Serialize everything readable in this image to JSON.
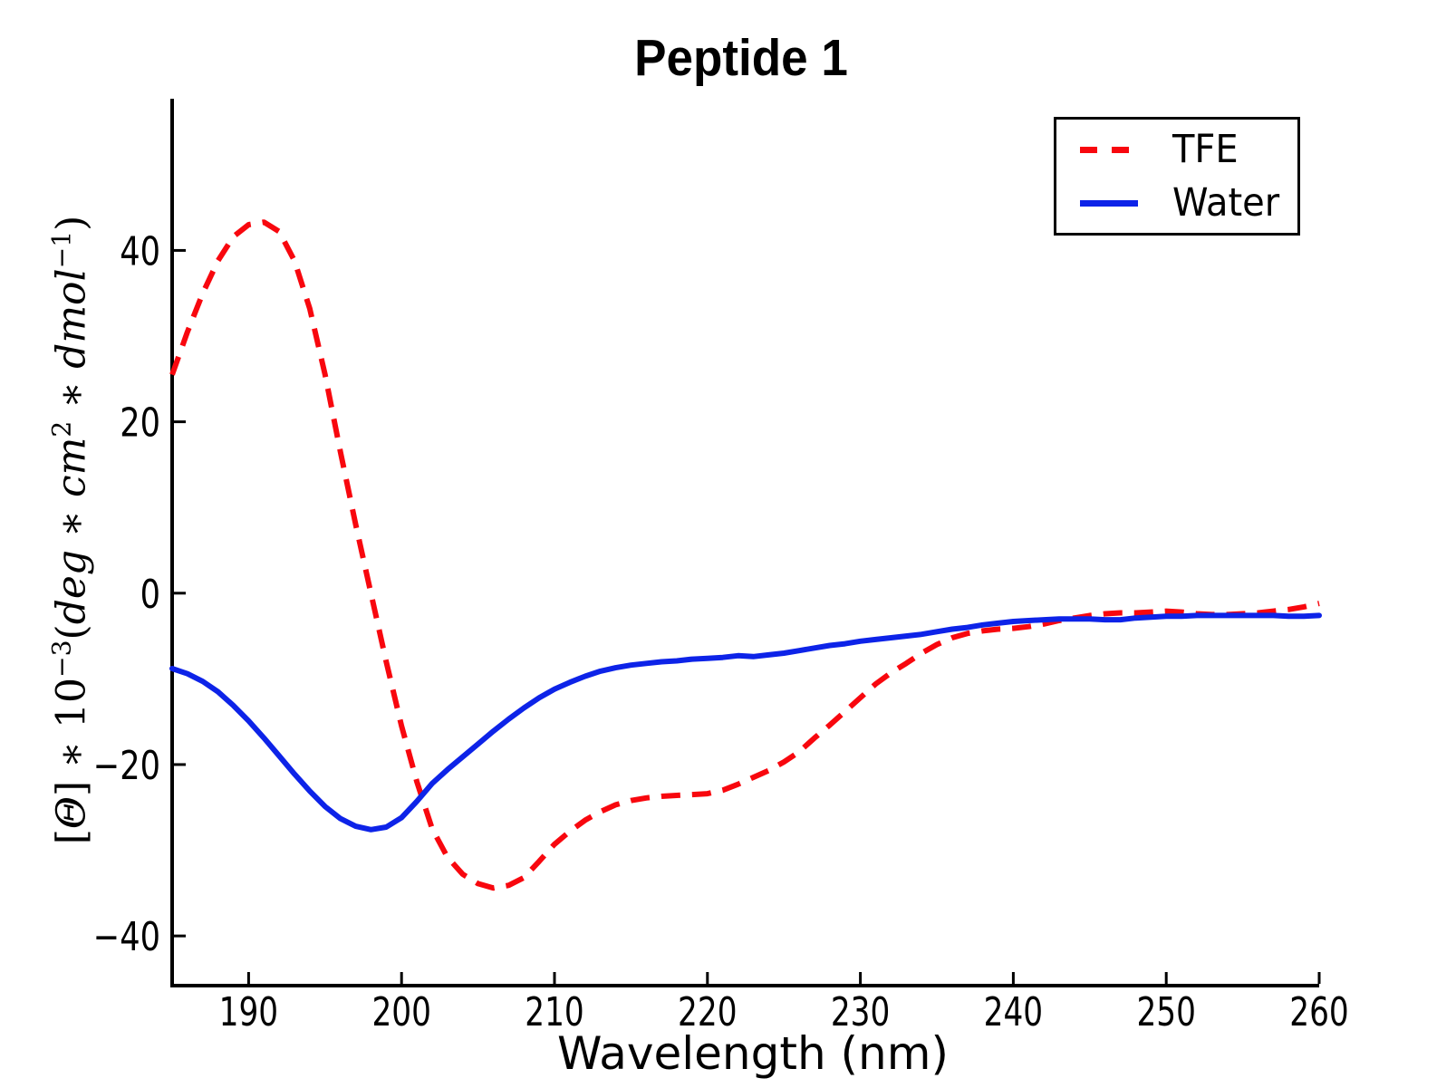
{
  "title": "Peptide 1",
  "axes": {
    "xlabel": "Wavelength (nm)",
    "ylabel_text": "[Θ] ∗ 10⁻³(deg ∗ cm² ∗ dmol⁻¹)",
    "ylabel_parts": [
      {
        "t": "[",
        "it": false,
        "sup": false
      },
      {
        "t": "Θ",
        "it": true,
        "sup": false
      },
      {
        "t": "] ∗ 10",
        "it": false,
        "sup": false
      },
      {
        "t": "−3",
        "it": false,
        "sup": true
      },
      {
        "t": "(",
        "it": false,
        "sup": false
      },
      {
        "t": "deg",
        "it": true,
        "sup": false
      },
      {
        "t": " ∗ ",
        "it": false,
        "sup": false
      },
      {
        "t": "cm",
        "it": true,
        "sup": false
      },
      {
        "t": "2",
        "it": false,
        "sup": true
      },
      {
        "t": " ∗ ",
        "it": false,
        "sup": false
      },
      {
        "t": "dmol",
        "it": true,
        "sup": false
      },
      {
        "t": "−1",
        "it": false,
        "sup": true
      },
      {
        "t": ")",
        "it": false,
        "sup": false
      }
    ]
  },
  "legend": {
    "items": [
      {
        "label": "TFE",
        "color": "#f8070e",
        "style": "dashed"
      },
      {
        "label": "Water",
        "color": "#0d23e8",
        "style": "solid"
      }
    ]
  },
  "colors": {
    "tfe_red": "#f8070e",
    "water_blue": "#0d23e8",
    "axis_black": "#000000",
    "background": "#ffffff"
  },
  "chart_data": {
    "type": "line",
    "title": "Peptide 1",
    "xlabel": "Wavelength (nm)",
    "ylabel": "[Θ] ∗ 10⁻³(deg ∗ cm² ∗ dmol⁻¹)",
    "grid": false,
    "legend_position": "upper right",
    "xlim": [
      185,
      260
    ],
    "ylim": [
      -45.8,
      57.7
    ],
    "x_ticks": [
      190,
      200,
      210,
      220,
      230,
      240,
      250,
      260
    ],
    "y_ticks": [
      -40,
      -20,
      0,
      20,
      40
    ],
    "x": [
      185,
      186,
      187,
      188,
      189,
      190,
      191,
      192,
      193,
      194,
      195,
      196,
      197,
      198,
      199,
      200,
      201,
      202,
      203,
      204,
      205,
      206,
      207,
      208,
      209,
      210,
      211,
      212,
      213,
      214,
      215,
      216,
      217,
      218,
      219,
      220,
      221,
      222,
      223,
      224,
      225,
      226,
      227,
      228,
      229,
      230,
      231,
      232,
      233,
      234,
      235,
      236,
      237,
      238,
      239,
      240,
      241,
      242,
      243,
      244,
      245,
      246,
      247,
      248,
      249,
      250,
      251,
      252,
      253,
      254,
      255,
      256,
      257,
      258,
      259,
      260
    ],
    "series": [
      {
        "name": "TFE",
        "color": "#f8070e",
        "style": "dashed",
        "values": [
          25.5,
          30.5,
          35.0,
          38.8,
          41.6,
          43.0,
          43.3,
          42.2,
          38.8,
          33.2,
          25.5,
          16.5,
          8.0,
          0.0,
          -8.0,
          -15.5,
          -22.0,
          -27.5,
          -30.8,
          -32.8,
          -33.9,
          -34.4,
          -34.1,
          -33.2,
          -31.3,
          -29.3,
          -27.8,
          -26.5,
          -25.5,
          -24.7,
          -24.2,
          -23.9,
          -23.7,
          -23.6,
          -23.5,
          -23.4,
          -23.0,
          -22.3,
          -21.5,
          -20.7,
          -19.7,
          -18.5,
          -16.9,
          -15.4,
          -13.8,
          -12.2,
          -10.6,
          -9.3,
          -8.2,
          -7.0,
          -6.0,
          -5.2,
          -4.7,
          -4.4,
          -4.2,
          -4.1,
          -3.9,
          -3.6,
          -3.2,
          -2.9,
          -2.6,
          -2.4,
          -2.3,
          -2.3,
          -2.2,
          -2.1,
          -2.2,
          -2.4,
          -2.5,
          -2.5,
          -2.4,
          -2.3,
          -2.1,
          -1.9,
          -1.6,
          -1.2
        ]
      },
      {
        "name": "Water",
        "color": "#0d23e8",
        "style": "solid",
        "values": [
          -8.8,
          -9.4,
          -10.3,
          -11.5,
          -13.1,
          -14.9,
          -16.9,
          -19.0,
          -21.1,
          -23.1,
          -24.9,
          -26.3,
          -27.2,
          -27.6,
          -27.3,
          -26.2,
          -24.3,
          -22.2,
          -20.6,
          -19.1,
          -17.6,
          -16.1,
          -14.7,
          -13.4,
          -12.2,
          -11.2,
          -10.4,
          -9.7,
          -9.1,
          -8.7,
          -8.4,
          -8.2,
          -8.0,
          -7.9,
          -7.7,
          -7.6,
          -7.5,
          -7.3,
          -7.4,
          -7.2,
          -7.0,
          -6.7,
          -6.4,
          -6.1,
          -5.9,
          -5.6,
          -5.4,
          -5.2,
          -5.0,
          -4.8,
          -4.5,
          -4.2,
          -4.0,
          -3.7,
          -3.5,
          -3.3,
          -3.2,
          -3.1,
          -3.0,
          -3.0,
          -3.0,
          -3.1,
          -3.1,
          -2.9,
          -2.8,
          -2.7,
          -2.7,
          -2.6,
          -2.6,
          -2.6,
          -2.6,
          -2.6,
          -2.6,
          -2.7,
          -2.7,
          -2.6
        ]
      }
    ]
  }
}
